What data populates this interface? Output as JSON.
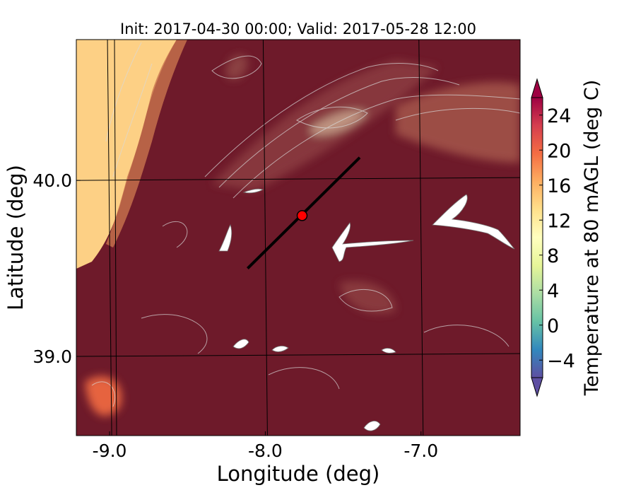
{
  "title": "Init: 2017-04-30 00:00; Valid: 2017-05-28 12:00",
  "map": {
    "x_axis": {
      "label": "Longitude (deg)",
      "range": [
        -9.2,
        -6.35
      ],
      "ticks": [
        {
          "value": -9.0,
          "label": "-9.0"
        },
        {
          "value": -8.0,
          "label": "-8.0"
        },
        {
          "value": -7.0,
          "label": "-7.0"
        }
      ]
    },
    "y_axis": {
      "label": "Latitude (deg)",
      "range": [
        38.55,
        40.8
      ],
      "ticks": [
        {
          "value": 39.0,
          "label": "39.0"
        },
        {
          "value": 40.0,
          "label": "40.0"
        }
      ]
    },
    "grid": true,
    "transect": {
      "start": [
        -8.1,
        39.5
      ],
      "end": [
        -7.38,
        40.13
      ],
      "color": "#000000"
    },
    "marker": {
      "lon": -7.75,
      "lat": 39.8,
      "color": "#ff0000"
    }
  },
  "colorbar": {
    "label": "Temperature at 80 mAGL (deg C)",
    "range": [
      -6,
      26
    ],
    "extend": "both",
    "ticks": [
      {
        "value": -4,
        "label": "−4"
      },
      {
        "value": 0,
        "label": "0"
      },
      {
        "value": 4,
        "label": "4"
      },
      {
        "value": 8,
        "label": "8"
      },
      {
        "value": 12,
        "label": "12"
      },
      {
        "value": 16,
        "label": "16"
      },
      {
        "value": 20,
        "label": "20"
      },
      {
        "value": 24,
        "label": "24"
      }
    ],
    "colormap": "Spectral_r"
  },
  "colors": {
    "field_main": "#6e1a2a",
    "field_warm_light": "#a2524a",
    "field_cool_coast": "#fdd085",
    "field_warm_orange": "#f36c43",
    "contour": "#d9d9d9",
    "mask": "#ffffff"
  }
}
